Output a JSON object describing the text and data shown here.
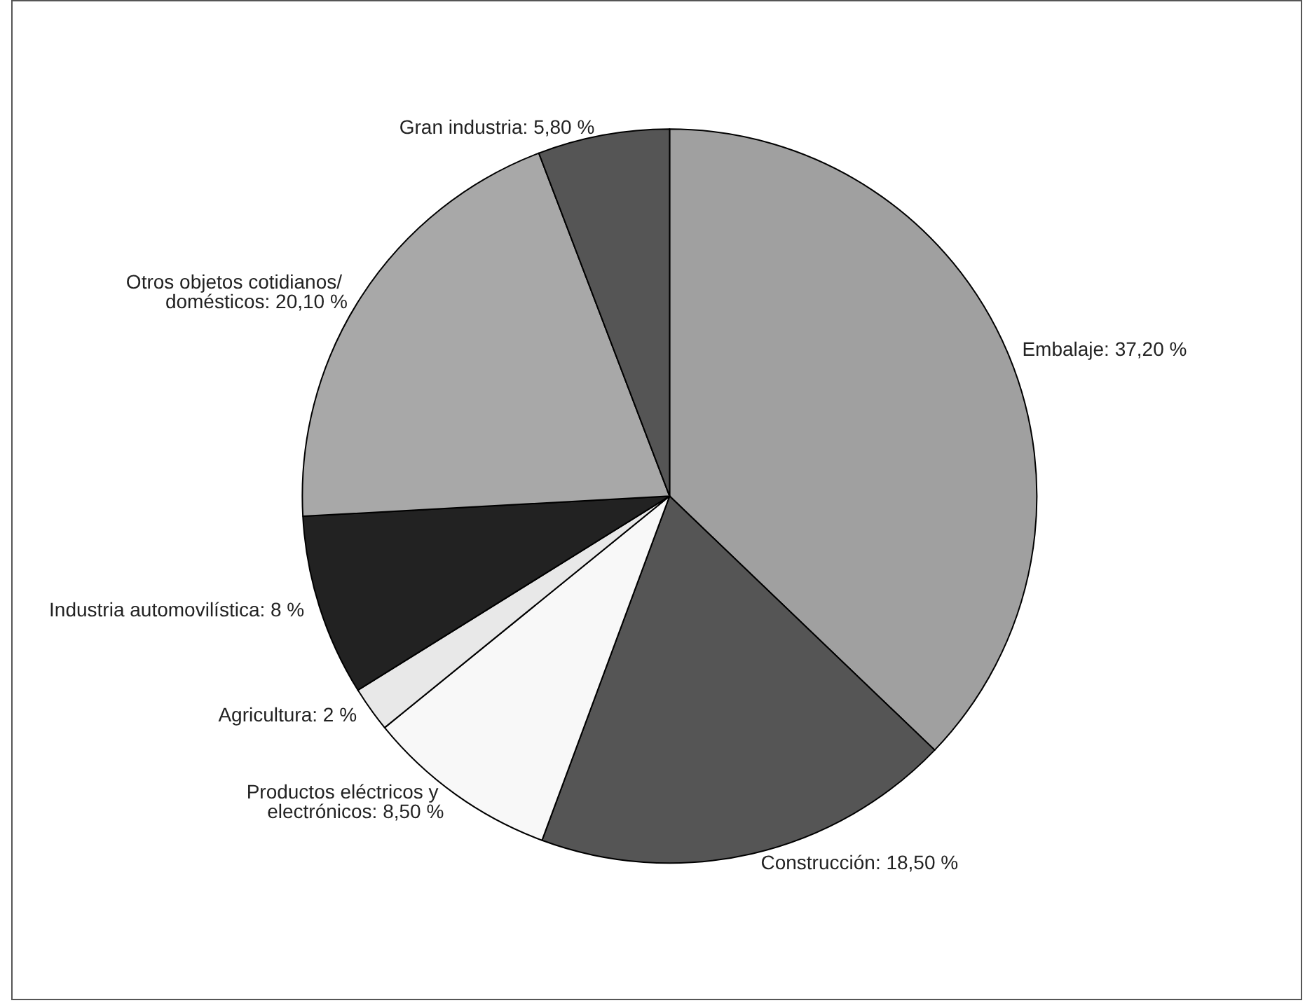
{
  "chart_data": {
    "type": "pie",
    "categories": [
      "Embalaje",
      "Construcción",
      "Productos eléctricos y electrónicos",
      "Agricultura",
      "Industria automovilística",
      "Otros objetos cotidianos/ domésticos",
      "Gran industria"
    ],
    "values": [
      37.2,
      18.5,
      8.5,
      2,
      8,
      20.1,
      5.8
    ],
    "value_labels": [
      "37,20 %",
      "18,50 %",
      "8,50 %",
      "2 %",
      "8 %",
      "20,10 %",
      "5,80 %"
    ],
    "colors": [
      "#a0a0a0",
      "#555555",
      "#f8f8f8",
      "#e8e8e8",
      "#222222",
      "#a8a8a8",
      "#555555"
    ],
    "legend": false
  }
}
